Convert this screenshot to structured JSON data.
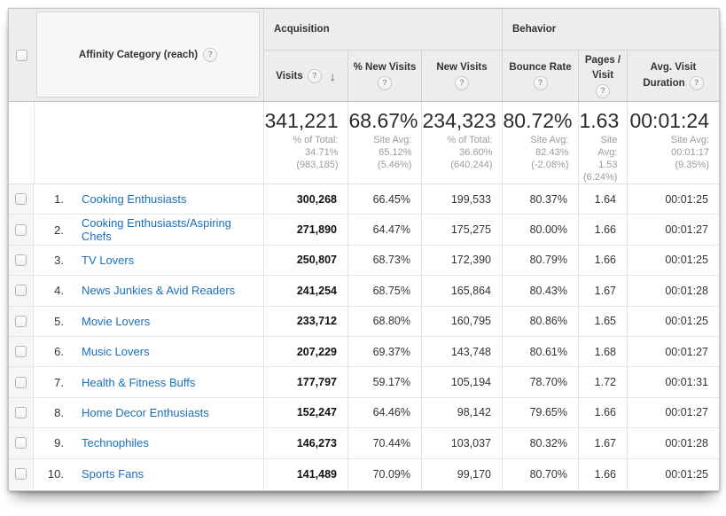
{
  "table": {
    "primary_dimension": {
      "label": "Affinity Category (reach)"
    },
    "groups": {
      "acquisition": "Acquisition",
      "behavior": "Behavior"
    },
    "columns": {
      "visits": "Visits",
      "pct_new_visits": "% New Visits",
      "new_visits": "New Visits",
      "bounce_rate": "Bounce Rate",
      "pages_visit_line1": "Pages /",
      "pages_visit_line2": "Visit",
      "avg_duration_line1": "Avg. Visit",
      "avg_duration_line2": "Duration"
    },
    "summary": {
      "visits": {
        "value": "341,221",
        "sub": "% of Total:\n34.71%\n(983,185)"
      },
      "pct_new_visits": {
        "value": "68.67%",
        "sub": "Site Avg:\n65.12%\n(5.46%)"
      },
      "new_visits": {
        "value": "234,323",
        "sub": "% of Total:\n36.60%\n(640,244)"
      },
      "bounce_rate": {
        "value": "80.72%",
        "sub": "Site Avg:\n82.43%\n(-2.08%)"
      },
      "pages_visit": {
        "value": "1.63",
        "sub": "Site\nAvg:\n1.53\n(6.24%)"
      },
      "avg_duration": {
        "value": "00:01:24",
        "sub": "Site Avg:\n00:01:17\n(9.35%)"
      }
    },
    "rows": [
      {
        "index": "1.",
        "category": "Cooking Enthusiasts",
        "visits": "300,268",
        "pct_new_visits": "66.45%",
        "new_visits": "199,533",
        "bounce_rate": "80.37%",
        "pages_visit": "1.64",
        "avg_duration": "00:01:25"
      },
      {
        "index": "2.",
        "category": "Cooking Enthusiasts/Aspiring Chefs",
        "visits": "271,890",
        "pct_new_visits": "64.47%",
        "new_visits": "175,275",
        "bounce_rate": "80.00%",
        "pages_visit": "1.66",
        "avg_duration": "00:01:27"
      },
      {
        "index": "3.",
        "category": "TV Lovers",
        "visits": "250,807",
        "pct_new_visits": "68.73%",
        "new_visits": "172,390",
        "bounce_rate": "80.79%",
        "pages_visit": "1.66",
        "avg_duration": "00:01:25"
      },
      {
        "index": "4.",
        "category": "News Junkies & Avid Readers",
        "visits": "241,254",
        "pct_new_visits": "68.75%",
        "new_visits": "165,864",
        "bounce_rate": "80.43%",
        "pages_visit": "1.67",
        "avg_duration": "00:01:28"
      },
      {
        "index": "5.",
        "category": "Movie Lovers",
        "visits": "233,712",
        "pct_new_visits": "68.80%",
        "new_visits": "160,795",
        "bounce_rate": "80.86%",
        "pages_visit": "1.65",
        "avg_duration": "00:01:25"
      },
      {
        "index": "6.",
        "category": "Music Lovers",
        "visits": "207,229",
        "pct_new_visits": "69.37%",
        "new_visits": "143,748",
        "bounce_rate": "80.61%",
        "pages_visit": "1.68",
        "avg_duration": "00:01:27"
      },
      {
        "index": "7.",
        "category": "Health & Fitness Buffs",
        "visits": "177,797",
        "pct_new_visits": "59.17%",
        "new_visits": "105,194",
        "bounce_rate": "78.70%",
        "pages_visit": "1.72",
        "avg_duration": "00:01:31"
      },
      {
        "index": "8.",
        "category": "Home Decor Enthusiasts",
        "visits": "152,247",
        "pct_new_visits": "64.46%",
        "new_visits": "98,142",
        "bounce_rate": "79.65%",
        "pages_visit": "1.66",
        "avg_duration": "00:01:27"
      },
      {
        "index": "9.",
        "category": "Technophiles",
        "visits": "146,273",
        "pct_new_visits": "70.44%",
        "new_visits": "103,037",
        "bounce_rate": "80.32%",
        "pages_visit": "1.67",
        "avg_duration": "00:01:28"
      },
      {
        "index": "10.",
        "category": "Sports Fans",
        "visits": "141,489",
        "pct_new_visits": "70.09%",
        "new_visits": "99,170",
        "bounce_rate": "80.70%",
        "pages_visit": "1.66",
        "avg_duration": "00:01:25"
      }
    ]
  },
  "icons": {
    "help": "?",
    "sort_desc": "↓"
  },
  "colors": {
    "link_blue": "#1b6fba",
    "header_bg": "#ededed"
  }
}
